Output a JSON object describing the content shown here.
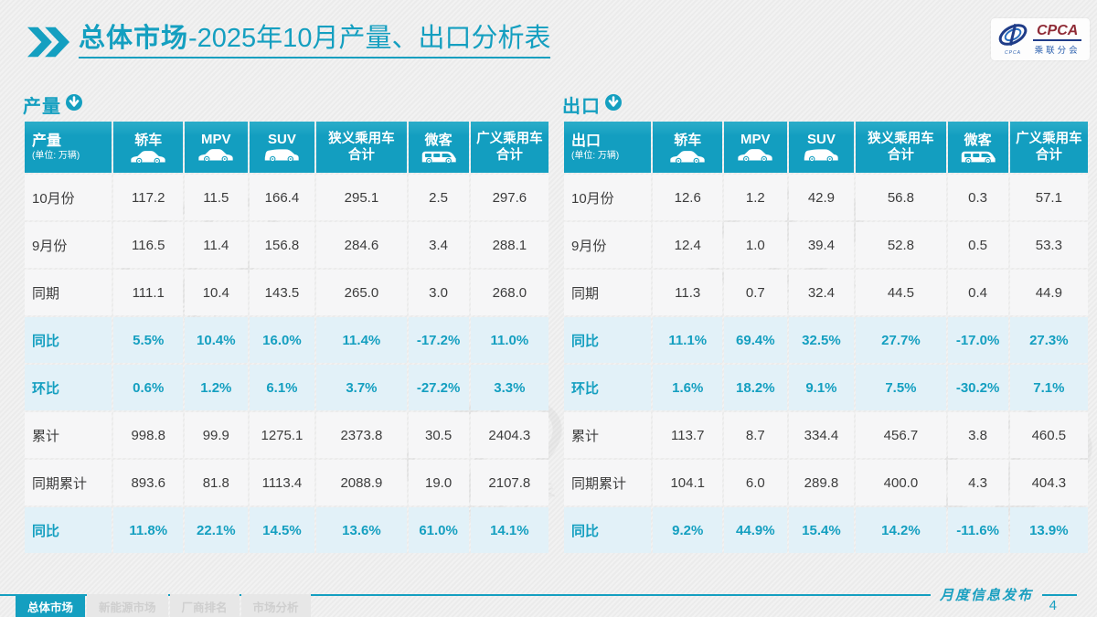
{
  "slide": {
    "title": {
      "bold": "总体市场",
      "rest": "-2025年10月产量、出口分析表"
    },
    "logo": {
      "acronym": "CPCA",
      "cn": "乘联分会",
      "swoosh_tiny": "CPCA"
    },
    "footer_note": "月度信息发布",
    "page_number": "4",
    "tabs": [
      {
        "label": "总体市场",
        "active": true
      },
      {
        "label": "新能源市场",
        "active": false
      },
      {
        "label": "厂商排名",
        "active": false
      },
      {
        "label": "市场分析",
        "active": false
      }
    ]
  },
  "columns": [
    {
      "label": "轿车",
      "icon": "sedan-icon"
    },
    {
      "label": "MPV",
      "icon": "sedan-icon"
    },
    {
      "label": "SUV",
      "icon": "suv-icon"
    },
    {
      "label": "狭义乘用车",
      "label2": "合计",
      "icon": null
    },
    {
      "label": "微客",
      "icon": "van-icon"
    },
    {
      "label": "广义乘用车",
      "label2": "合计",
      "icon": null
    }
  ],
  "col_widths": [
    "17%",
    "13.5%",
    "12.2%",
    "12.8%",
    "17.5%",
    "11.8%",
    "15.2%"
  ],
  "tables": [
    {
      "section": "产量",
      "unit": "(单位: 万辆)",
      "rows": [
        {
          "label": "10月份",
          "type": "data",
          "values": [
            "117.2",
            "11.5",
            "166.4",
            "295.1",
            "2.5",
            "297.6"
          ]
        },
        {
          "label": "9月份",
          "type": "data",
          "values": [
            "116.5",
            "11.4",
            "156.8",
            "284.6",
            "3.4",
            "288.1"
          ]
        },
        {
          "label": "同期",
          "type": "data",
          "values": [
            "111.1",
            "10.4",
            "143.5",
            "265.0",
            "3.0",
            "268.0"
          ]
        },
        {
          "label": "同比",
          "type": "pct",
          "values": [
            "5.5%",
            "10.4%",
            "16.0%",
            "11.4%",
            "-17.2%",
            "11.0%"
          ]
        },
        {
          "label": "环比",
          "type": "pct",
          "values": [
            "0.6%",
            "1.2%",
            "6.1%",
            "3.7%",
            "-27.2%",
            "3.3%"
          ]
        },
        {
          "label": "累计",
          "type": "data",
          "values": [
            "998.8",
            "99.9",
            "1275.1",
            "2373.8",
            "30.5",
            "2404.3"
          ]
        },
        {
          "label": "同期累计",
          "type": "data",
          "values": [
            "893.6",
            "81.8",
            "1113.4",
            "2088.9",
            "19.0",
            "2107.8"
          ]
        },
        {
          "label": "同比",
          "type": "pct",
          "values": [
            "11.8%",
            "22.1%",
            "14.5%",
            "13.6%",
            "61.0%",
            "14.1%"
          ]
        }
      ]
    },
    {
      "section": "出口",
      "unit": "(单位: 万辆)",
      "rows": [
        {
          "label": "10月份",
          "type": "data",
          "values": [
            "12.6",
            "1.2",
            "42.9",
            "56.8",
            "0.3",
            "57.1"
          ]
        },
        {
          "label": "9月份",
          "type": "data",
          "values": [
            "12.4",
            "1.0",
            "39.4",
            "52.8",
            "0.5",
            "53.3"
          ]
        },
        {
          "label": "同期",
          "type": "data",
          "values": [
            "11.3",
            "0.7",
            "32.4",
            "44.5",
            "0.4",
            "44.9"
          ]
        },
        {
          "label": "同比",
          "type": "pct",
          "values": [
            "11.1%",
            "69.4%",
            "32.5%",
            "27.7%",
            "-17.0%",
            "27.3%"
          ]
        },
        {
          "label": "环比",
          "type": "pct",
          "values": [
            "1.6%",
            "18.2%",
            "9.1%",
            "7.5%",
            "-30.2%",
            "7.1%"
          ]
        },
        {
          "label": "累计",
          "type": "data",
          "values": [
            "113.7",
            "8.7",
            "334.4",
            "456.7",
            "3.8",
            "460.5"
          ]
        },
        {
          "label": "同期累计",
          "type": "data",
          "values": [
            "104.1",
            "6.0",
            "289.8",
            "400.0",
            "4.3",
            "404.3"
          ]
        },
        {
          "label": "同比",
          "type": "pct",
          "values": [
            "9.2%",
            "44.9%",
            "15.4%",
            "14.2%",
            "-11.6%",
            "13.9%"
          ]
        }
      ]
    }
  ],
  "colors": {
    "accent": "#149fc0",
    "highlight_row": "#e2f1f8",
    "logo_navy": "#1f3c88",
    "logo_red": "#8f2b36"
  }
}
